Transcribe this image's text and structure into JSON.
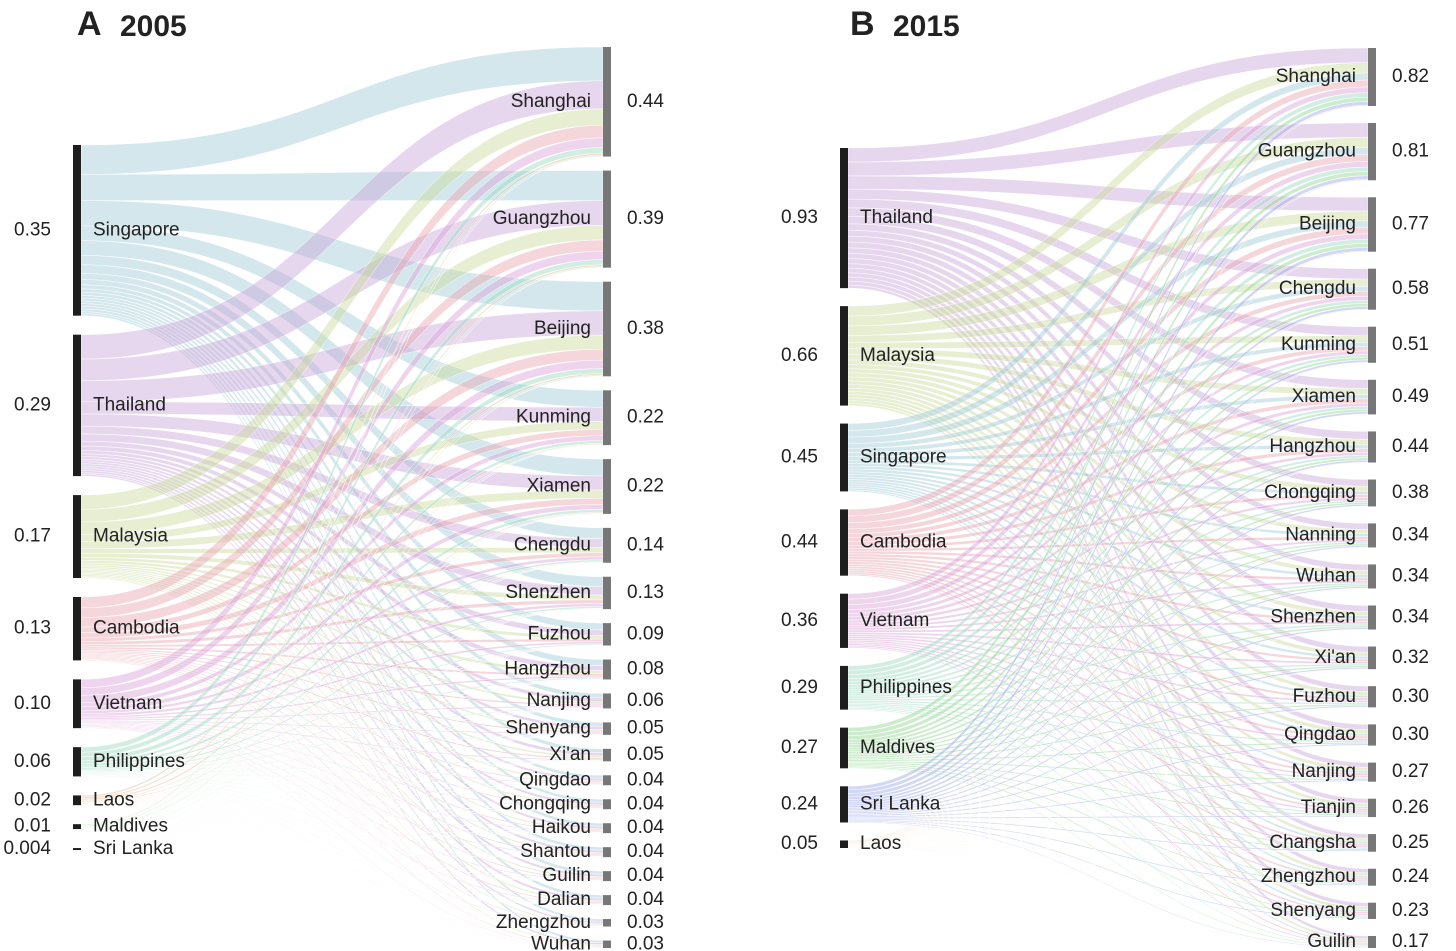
{
  "chart_data": [
    {
      "type": "sankey",
      "label": "A",
      "title": "2005",
      "source_names": [
        "Singapore",
        "Thailand",
        "Malaysia",
        "Cambodia",
        "Vietnam",
        "Philippines",
        "Laos",
        "Maldives",
        "Sri Lanka"
      ],
      "source_values": [
        0.35,
        0.29,
        0.17,
        0.13,
        {
          "value": 0.1,
          "label": "0.10"
        },
        0.06,
        0.02,
        0.01,
        0.004
      ],
      "source_colors": [
        "#9ecad6",
        "#c9a6d9",
        "#c9da9c",
        "#e6a4b0",
        "#d9a2d8",
        "#9cd9c2",
        "#e0b98e",
        "#8fd48f",
        "#9ba7e8"
      ],
      "target_names": [
        "Shanghai",
        "Guangzhou",
        "Beijing",
        "Kunming",
        "Xiamen",
        "Chengdu",
        "Shenzhen",
        "Fuzhou",
        "Hangzhou",
        "Nanjing",
        "Shenyang",
        "Xi'an",
        "Qingdao",
        "Chongqing",
        "Haikou",
        "Shantou",
        "Guilin",
        "Dalian",
        "Zhengzhou",
        "Wuhan"
      ],
      "target_values": [
        0.44,
        0.39,
        0.38,
        0.22,
        0.22,
        0.14,
        0.13,
        0.09,
        0.08,
        0.06,
        0.05,
        0.05,
        0.04,
        0.04,
        0.04,
        0.04,
        0.04,
        0.04,
        0.03,
        0.03
      ]
    },
    {
      "type": "sankey",
      "label": "B",
      "title": "2015",
      "source_names": [
        "Thailand",
        "Malaysia",
        "Singapore",
        "Cambodia",
        "Vietnam",
        "Philippines",
        "Maldives",
        "Sri Lanka",
        "Laos"
      ],
      "source_values": [
        0.93,
        0.66,
        0.45,
        0.44,
        0.36,
        0.29,
        0.27,
        0.24,
        0.05
      ],
      "source_colors": [
        "#c9a6d9",
        "#c9da9c",
        "#9ecad6",
        "#e6a4b0",
        "#d9a2d8",
        "#9cd9c2",
        "#8fd48f",
        "#9ba7e8",
        "#e0b98e"
      ],
      "target_names": [
        "Shanghai",
        "Guangzhou",
        "Beijing",
        "Chengdu",
        "Kunming",
        "Xiamen",
        "Hangzhou",
        "Chongqing",
        "Nanning",
        "Wuhan",
        "Shenzhen",
        "Xi'an",
        "Fuzhou",
        "Qingdao",
        "Nanjing",
        "Tianjin",
        "Changsha",
        "Zhengzhou",
        "Shenyang",
        "Guilin"
      ],
      "target_values": [
        0.82,
        0.81,
        0.77,
        0.58,
        0.51,
        0.49,
        0.44,
        0.38,
        0.34,
        0.34,
        0.34,
        0.32,
        {
          "value": 0.3,
          "label": "0.30"
        },
        {
          "value": 0.3,
          "label": "0.30"
        },
        0.27,
        0.26,
        0.25,
        0.24,
        0.23,
        0.17
      ]
    }
  ]
}
